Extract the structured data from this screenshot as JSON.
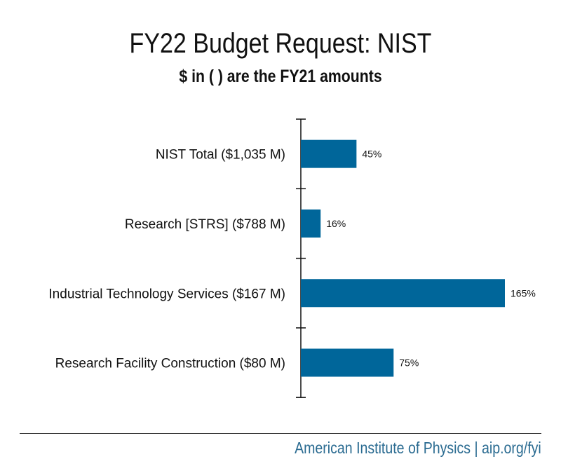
{
  "chart_data": {
    "type": "bar",
    "orientation": "horizontal",
    "title": "FY22 Budget Request: NIST",
    "subtitle": "$ in ( ) are the FY21 amounts",
    "categories": [
      "NIST Total ($1,035 M)",
      "Research [STRS] ($788 M)",
      "Industrial Technology Services ($167 M)",
      "Research Facility Construction ($80 M)"
    ],
    "values": [
      45,
      16,
      165,
      75
    ],
    "data_labels": [
      "45%",
      "16%",
      "165%",
      "75%"
    ],
    "unit": "%",
    "xlim": [
      0,
      165
    ],
    "grid": false,
    "bar_color": "#00669a"
  },
  "footer": "American Institute of Physics | aip.org/fyi"
}
